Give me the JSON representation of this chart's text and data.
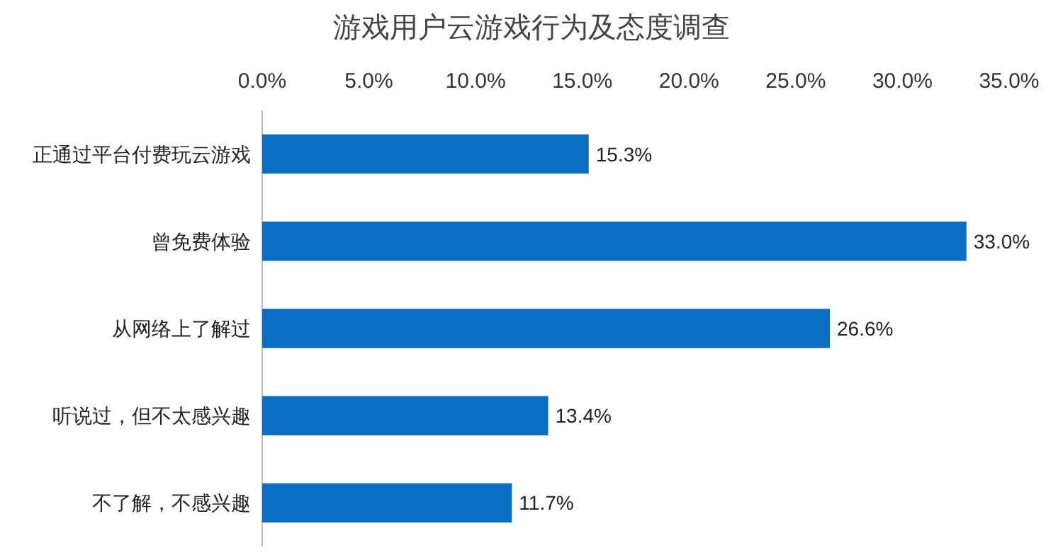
{
  "chart_data": {
    "type": "bar",
    "orientation": "horizontal",
    "title": "游戏用户云游戏行为及态度调查",
    "categories": [
      "正通过平台付费玩云游戏",
      "曾免费体验",
      "从网络上了解过",
      "听说过，但不太感兴趣",
      "不了解，不感兴趣"
    ],
    "values": [
      15.3,
      33.0,
      26.6,
      13.4,
      11.7
    ],
    "value_labels": [
      "15.3%",
      "33.0%",
      "26.6%",
      "13.4%",
      "11.7%"
    ],
    "color": "#0a6fc2",
    "xlim": [
      0,
      35
    ],
    "xticks": [
      {
        "value": 0,
        "label": "0.0%"
      },
      {
        "value": 5,
        "label": "5.0%"
      },
      {
        "value": 10,
        "label": "10.0%"
      },
      {
        "value": 15,
        "label": "15.0%"
      },
      {
        "value": 20,
        "label": "20.0%"
      },
      {
        "value": 25,
        "label": "25.0%"
      },
      {
        "value": 30,
        "label": "30.0%"
      },
      {
        "value": 35,
        "label": "35.0%"
      }
    ],
    "grid": false
  }
}
